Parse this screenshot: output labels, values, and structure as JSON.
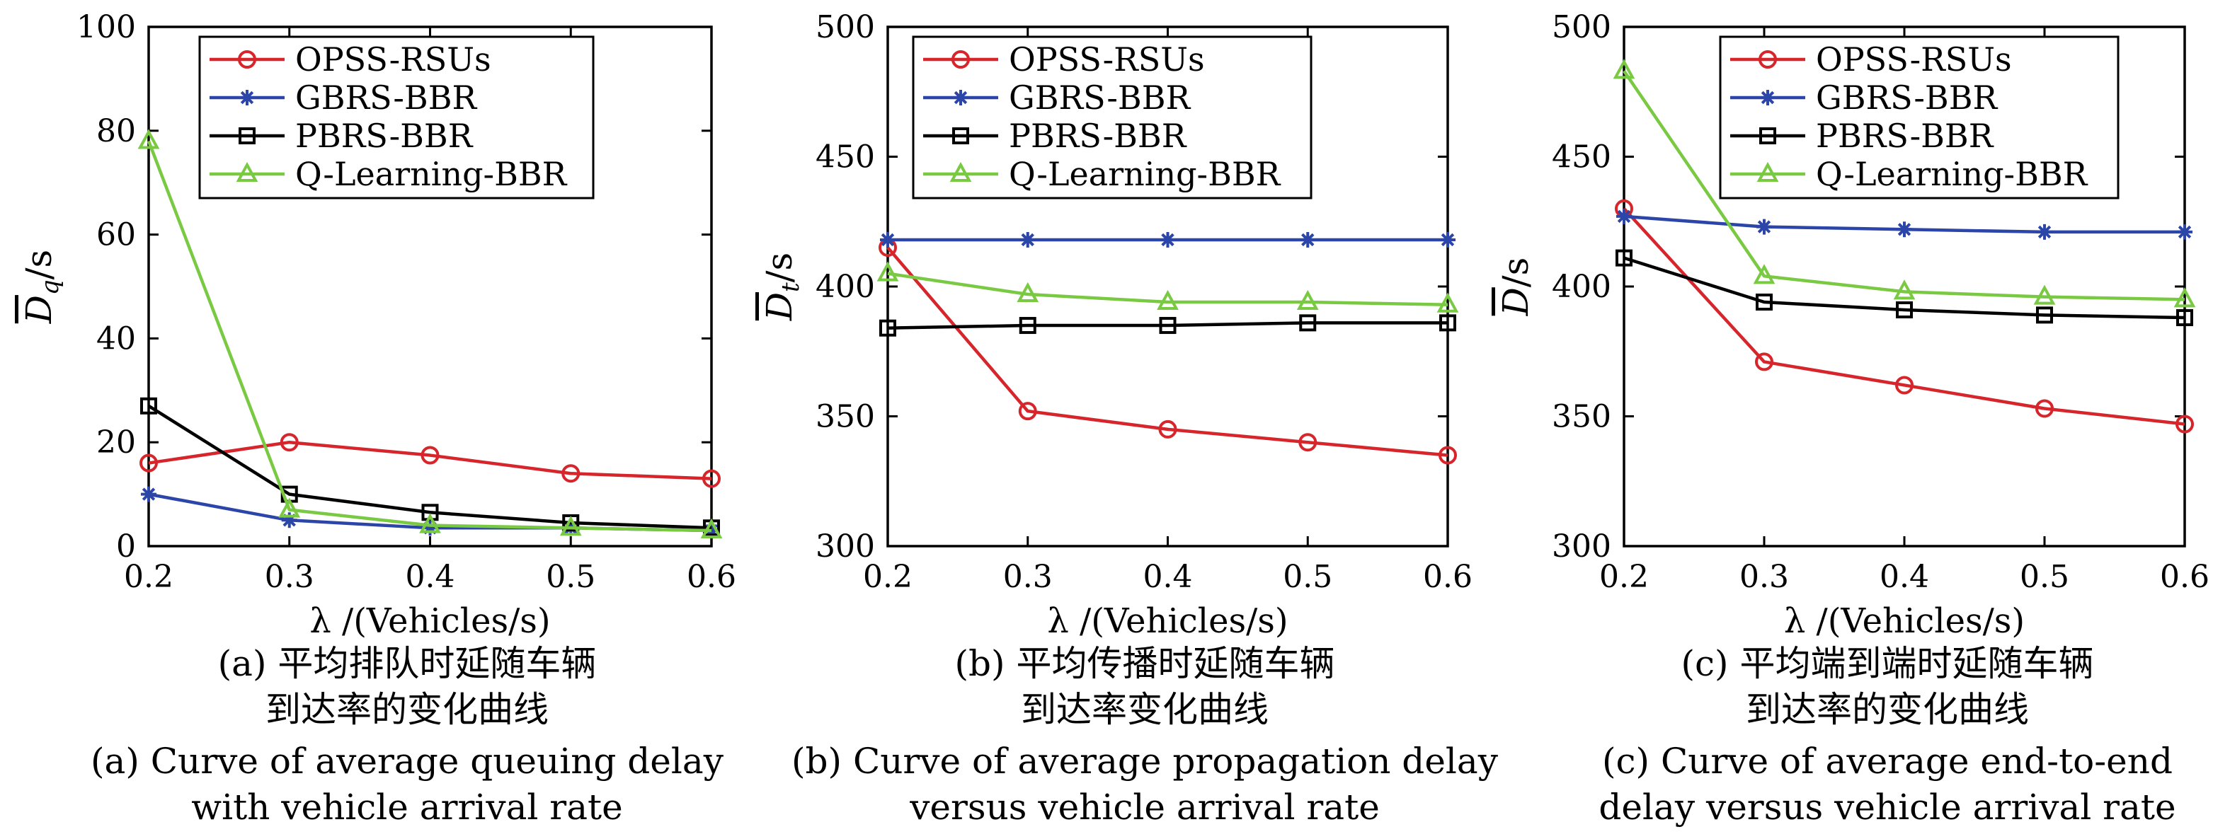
{
  "colors": {
    "OPSS-RSUs": "#d6252b",
    "GBRS-BBR": "#2b45a8",
    "PBRS-BBR": "#000000",
    "Q-Learning-BBR": "#7ac943"
  },
  "markers": {
    "OPSS-RSUs": "circle",
    "GBRS-BBR": "asterisk",
    "PBRS-BBR": "square",
    "Q-Learning-BBR": "triangle"
  },
  "chart_data": [
    {
      "type": "line",
      "ylabel": "D_q/s",
      "ylabel_symbol": "D",
      "ylabel_sub": "q",
      "ylabel_unit": "/s",
      "xlabel": "λ /(Vehicles/s)",
      "x": [
        0.2,
        0.3,
        0.4,
        0.5,
        0.6
      ],
      "xlim": [
        0.2,
        0.6
      ],
      "ylim": [
        0,
        100
      ],
      "xticks": [
        "0.2",
        "0.3",
        "0.4",
        "0.5",
        "0.6"
      ],
      "yticks": [
        0,
        20,
        40,
        60,
        80,
        100
      ],
      "legend_position": "top-center",
      "grid": false,
      "series": [
        {
          "name": "OPSS-RSUs",
          "values": [
            16,
            20,
            17.5,
            14,
            13
          ]
        },
        {
          "name": "GBRS-BBR",
          "values": [
            10,
            5,
            3.5,
            3.5,
            3
          ]
        },
        {
          "name": "PBRS-BBR",
          "values": [
            27,
            10,
            6.5,
            4.5,
            3.5
          ]
        },
        {
          "name": "Q-Learning-BBR",
          "values": [
            78,
            7,
            4,
            3.5,
            3
          ]
        }
      ],
      "caption": [
        "(a) 平均排队时延随车辆",
        "到达率的变化曲线",
        "(a) Curve of average queuing delay",
        "with vehicle arrival rate"
      ]
    },
    {
      "type": "line",
      "ylabel": "D_t/s",
      "ylabel_symbol": "D",
      "ylabel_sub": "t",
      "ylabel_unit": "/s",
      "xlabel": "λ /(Vehicles/s)",
      "x": [
        0.2,
        0.3,
        0.4,
        0.5,
        0.6
      ],
      "xlim": [
        0.2,
        0.6
      ],
      "ylim": [
        300,
        500
      ],
      "xticks": [
        "0.2",
        "0.3",
        "0.4",
        "0.5",
        "0.6"
      ],
      "yticks": [
        300,
        350,
        400,
        450,
        500
      ],
      "legend_position": "top-right",
      "grid": false,
      "series": [
        {
          "name": "OPSS-RSUs",
          "values": [
            415,
            352,
            345,
            340,
            335
          ]
        },
        {
          "name": "GBRS-BBR",
          "values": [
            418,
            418,
            418,
            418,
            418
          ]
        },
        {
          "name": "PBRS-BBR",
          "values": [
            384,
            385,
            385,
            386,
            386
          ]
        },
        {
          "name": "Q-Learning-BBR",
          "values": [
            405,
            397,
            394,
            394,
            393
          ]
        }
      ],
      "caption": [
        "(b) 平均传播时延随车辆",
        "到达率变化曲线",
        "(b) Curve of average propagation delay",
        "versus vehicle arrival rate"
      ]
    },
    {
      "type": "line",
      "ylabel": "D/s",
      "ylabel_symbol": "D",
      "ylabel_sub": "",
      "ylabel_unit": "/s",
      "xlabel": "λ /(Vehicles/s)",
      "x": [
        0.2,
        0.3,
        0.4,
        0.5,
        0.6
      ],
      "xlim": [
        0.2,
        0.6
      ],
      "ylim": [
        300,
        500
      ],
      "xticks": [
        "0.2",
        "0.3",
        "0.4",
        "0.5",
        "0.6"
      ],
      "yticks": [
        300,
        350,
        400,
        450,
        500
      ],
      "legend_position": "top-right",
      "grid": false,
      "series": [
        {
          "name": "OPSS-RSUs",
          "values": [
            430,
            371,
            362,
            353,
            347
          ]
        },
        {
          "name": "GBRS-BBR",
          "values": [
            427,
            423,
            422,
            421,
            421
          ]
        },
        {
          "name": "PBRS-BBR",
          "values": [
            411,
            394,
            391,
            389,
            388
          ]
        },
        {
          "name": "Q-Learning-BBR",
          "values": [
            483,
            404,
            398,
            396,
            395
          ]
        }
      ],
      "caption": [
        "(c) 平均端到端时延随车辆",
        "到达率的变化曲线",
        "(c) Curve of average end-to-end",
        "delay versus vehicle arrival rate"
      ]
    }
  ]
}
